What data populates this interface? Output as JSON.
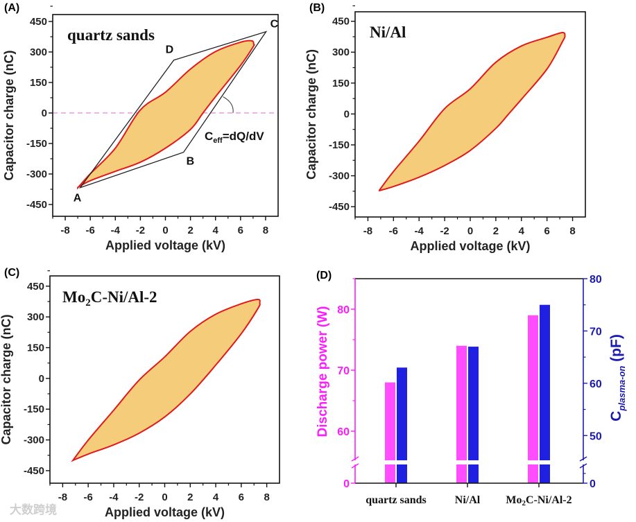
{
  "watermark": "大数跨境",
  "chart_data": [
    {
      "panel_label": "(A)",
      "type": "line",
      "title": "quartz sands",
      "xlabel": "Applied voltage (kV)",
      "ylabel": "Capacitor charge (nC)",
      "xlim": [
        -9,
        9
      ],
      "ylim": [
        -508,
        484
      ],
      "xticks": [
        "-8",
        "-6",
        "-4",
        "-2",
        "0",
        "2",
        "4",
        "6",
        "8"
      ],
      "yticks": [
        "450",
        "300",
        "150",
        "0",
        "-150",
        "-300",
        "-450"
      ],
      "loop_upper": [
        [
          -7,
          -368
        ],
        [
          -6,
          -299
        ],
        [
          -4,
          -173
        ],
        [
          -2,
          15
        ],
        [
          0,
          102
        ],
        [
          2,
          216
        ],
        [
          4,
          302
        ],
        [
          6,
          348
        ],
        [
          6.9,
          355
        ],
        [
          7.05,
          338
        ]
      ],
      "loop_lower": [
        [
          7,
          325
        ],
        [
          6,
          234
        ],
        [
          4,
          80
        ],
        [
          3,
          0
        ],
        [
          2,
          -81
        ],
        [
          0,
          -173
        ],
        [
          -2,
          -242
        ],
        [
          -4,
          -287
        ],
        [
          -6,
          -333
        ],
        [
          -7,
          -366
        ]
      ],
      "parallelogram": {
        "A": [
          -6.8,
          -367
        ],
        "B": [
          1.45,
          -193
        ],
        "C": [
          8.04,
          400
        ],
        "D": [
          0.67,
          260
        ]
      },
      "vertex_labels": [
        "A",
        "B",
        "C",
        "D"
      ],
      "annotation": {
        "main": "C",
        "sub": "eff",
        "rest": "=dQ/dV"
      },
      "zero_line": true,
      "colors": {
        "fill": "#f5cd7a",
        "line": "#e01a1a",
        "zero": "#e6a3e6"
      }
    },
    {
      "panel_label": "(B)",
      "type": "line",
      "title": "Ni/Al",
      "xlabel": "Applied voltage (kV)",
      "ylabel": "Capacitor charge (nC)",
      "xlim": [
        -9,
        9
      ],
      "ylim": [
        -500,
        496
      ],
      "xticks": [
        "-8",
        "-6",
        "-4",
        "-2",
        "0",
        "2",
        "4",
        "6",
        "8"
      ],
      "yticks": [
        "450",
        "300",
        "150",
        "0",
        "-150",
        "-300",
        "-450"
      ],
      "loop_upper": [
        [
          -7.1,
          -370
        ],
        [
          -6,
          -279
        ],
        [
          -4,
          -132
        ],
        [
          -2,
          26
        ],
        [
          0,
          122
        ],
        [
          2,
          251
        ],
        [
          4,
          330
        ],
        [
          6,
          372
        ],
        [
          7.2,
          395
        ],
        [
          7.4,
          378
        ]
      ],
      "loop_lower": [
        [
          7.2,
          350
        ],
        [
          6,
          218
        ],
        [
          4,
          71
        ],
        [
          3,
          0
        ],
        [
          2,
          -70
        ],
        [
          0,
          -177
        ],
        [
          -2,
          -250
        ],
        [
          -4,
          -307
        ],
        [
          -6,
          -352
        ],
        [
          -7.1,
          -372
        ]
      ],
      "colors": {
        "fill": "#f5cd7a",
        "line": "#e01a1a"
      }
    },
    {
      "panel_label": "(C)",
      "type": "line",
      "title_main": "Mo",
      "title_sub": "2",
      "title_rest": "C-Ni/Al-2",
      "xlabel": "Applied voltage (kV)",
      "ylabel": "Capacitor charge (nC)",
      "xlim": [
        -9,
        9
      ],
      "ylim": [
        -511,
        500
      ],
      "xticks": [
        "-8",
        "-6",
        "-4",
        "-2",
        "0",
        "2",
        "4",
        "6",
        "8"
      ],
      "yticks": [
        "450",
        "300",
        "150",
        "0",
        "-150",
        "-300",
        "-450"
      ],
      "loop_upper": [
        [
          -7.2,
          -400
        ],
        [
          -6,
          -301
        ],
        [
          -4,
          -155
        ],
        [
          -2,
          -8
        ],
        [
          0,
          105
        ],
        [
          2,
          229
        ],
        [
          4,
          313
        ],
        [
          6,
          364
        ],
        [
          7.3,
          385
        ],
        [
          7.45,
          368
        ]
      ],
      "loop_lower": [
        [
          7.3,
          340
        ],
        [
          6,
          218
        ],
        [
          4,
          65
        ],
        [
          2,
          -76
        ],
        [
          0,
          -188
        ],
        [
          -2,
          -267
        ],
        [
          -4,
          -324
        ],
        [
          -6,
          -369
        ],
        [
          -7.2,
          -400
        ]
      ],
      "colors": {
        "fill": "#f5cd7a",
        "line": "#e01a1a"
      }
    },
    {
      "panel_label": "(D)",
      "type": "bar",
      "categories": [
        "quartz sands",
        "Ni/Al",
        "Mo2C-Ni/Al-2"
      ],
      "category_parts": [
        [
          "quartz sands",
          "",
          ""
        ],
        [
          "Ni/Al",
          "",
          ""
        ],
        [
          "Mo",
          "2",
          "C-Ni/Al-2"
        ]
      ],
      "series": [
        {
          "name": "Discharge power",
          "axis": "left",
          "values": [
            68,
            74,
            79
          ],
          "color": "#ff4dff"
        },
        {
          "name": "C plasma-on",
          "axis": "right",
          "values": [
            63,
            67,
            75
          ],
          "color": "#2020e0"
        }
      ],
      "ylabel_left": "Discharge power (W)",
      "ylabel_right": {
        "main": "C",
        "sub": "plasma-on",
        "rest": " (pF)"
      },
      "left_axis": {
        "ticks": [
          "0",
          "60",
          "70",
          "80"
        ],
        "lower_segment": [
          0,
          55
        ],
        "upper_segment": [
          55,
          85
        ]
      },
      "right_axis": {
        "ticks": [
          "0",
          "50",
          "60",
          "70",
          "80"
        ],
        "lower_segment": [
          0,
          45
        ],
        "upper_segment": [
          45,
          80
        ]
      },
      "axis_break": true,
      "colors": {
        "left": "#ff1aff",
        "right": "#1a1ab3"
      }
    }
  ]
}
